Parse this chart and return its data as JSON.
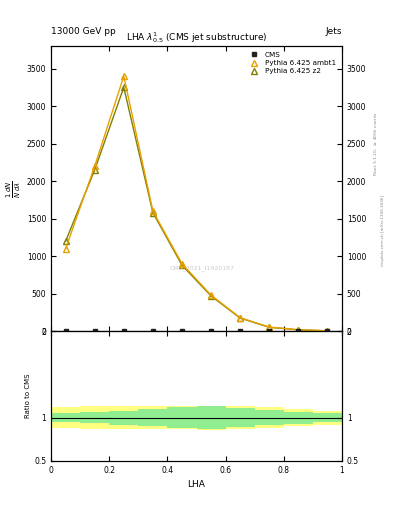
{
  "title": "LHA $\\lambda^{1}_{0.5}$ (CMS jet substructure)",
  "header_left": "13000 GeV pp",
  "header_right": "Jets",
  "right_label": "Rivet 3.1.10, $\\geq$ 400k events",
  "right_label2": "mcplots.cern.ch [arXiv:1306.3436]",
  "watermark": "CMS_2021_I1920187",
  "xlabel": "LHA",
  "ylabel": "$\\frac{1}{N}\\frac{dN}{d\\lambda}$",
  "ratio_ylabel": "Ratio to CMS",
  "cms_x": [
    0.05,
    0.15,
    0.25,
    0.35,
    0.45,
    0.55,
    0.65,
    0.75,
    0.85,
    0.95
  ],
  "ambt1_x": [
    0.05,
    0.15,
    0.25,
    0.35,
    0.45,
    0.55,
    0.65,
    0.75,
    0.85,
    0.95
  ],
  "ambt1_y": [
    1100,
    2200,
    3400,
    1600,
    900,
    480,
    180,
    55,
    20,
    5
  ],
  "z2_x": [
    0.05,
    0.15,
    0.25,
    0.35,
    0.45,
    0.55,
    0.65,
    0.75,
    0.85,
    0.95
  ],
  "z2_y": [
    1200,
    2150,
    3250,
    1580,
    880,
    470,
    175,
    52,
    18,
    5
  ],
  "ylim": [
    0,
    3800
  ],
  "yticks": [
    0,
    500,
    1000,
    1500,
    2000,
    2500,
    3000,
    3500
  ],
  "ratio_ylim": [
    0.5,
    2.0
  ],
  "ratio_yticks": [
    0.5,
    1.0,
    2.0
  ],
  "ratio_ytick_labels": [
    "0.5",
    "1",
    "2"
  ],
  "xlim": [
    0,
    1.0
  ],
  "xticks": [
    0,
    0.2,
    0.4,
    0.6,
    0.8,
    1.0
  ],
  "xtick_labels": [
    "0",
    "0.2",
    "0.4",
    "0.6",
    "0.8",
    "1"
  ],
  "cms_color": "#222222",
  "ambt1_color": "#E8A000",
  "z2_color": "#808000",
  "band_yellow": "#FFFF80",
  "band_green": "#90EE90",
  "bg_color": "#ffffff",
  "ratio_band_yellow_lo": [
    0.88,
    0.87,
    0.87,
    0.87,
    0.87,
    0.86,
    0.87,
    0.88,
    0.9,
    0.92
  ],
  "ratio_band_yellow_hi": [
    1.12,
    1.13,
    1.13,
    1.13,
    1.14,
    1.14,
    1.13,
    1.12,
    1.1,
    1.08
  ],
  "ratio_band_green_lo": [
    0.95,
    0.94,
    0.92,
    0.9,
    0.88,
    0.87,
    0.89,
    0.91,
    0.93,
    0.95
  ],
  "ratio_band_green_hi": [
    1.05,
    1.06,
    1.08,
    1.1,
    1.12,
    1.13,
    1.11,
    1.09,
    1.07,
    1.05
  ]
}
